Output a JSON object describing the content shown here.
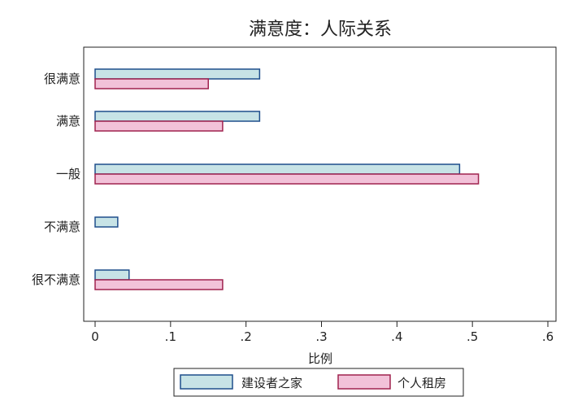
{
  "chart_data": {
    "type": "bar",
    "orientation": "horizontal",
    "title": "满意度：人际关系",
    "xlabel": "比例",
    "ylabel": "",
    "xlim": [
      0,
      0.6
    ],
    "xticks": [
      0,
      0.1,
      0.2,
      0.3,
      0.4,
      0.5,
      0.6
    ],
    "xtick_labels": [
      "0",
      ".1",
      ".2",
      ".3",
      ".4",
      ".5",
      ".6"
    ],
    "categories": [
      "很满意",
      "满意",
      "一般",
      "不满意",
      "很不满意"
    ],
    "series": [
      {
        "name": "建设者之家",
        "values": [
          0.218,
          0.218,
          0.483,
          0.03,
          0.045
        ],
        "fill": "#c7e3e6",
        "stroke": "#1f4e8c"
      },
      {
        "name": "个人租房",
        "values": [
          0.15,
          0.169,
          0.508,
          0.0,
          0.169
        ],
        "fill": "#f2c2d9",
        "stroke": "#a0234f"
      }
    ],
    "grid": false,
    "legend_position": "bottom"
  }
}
